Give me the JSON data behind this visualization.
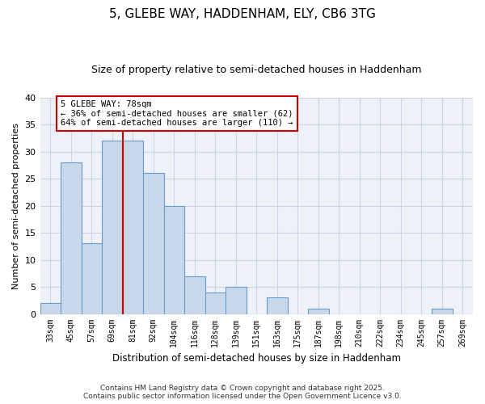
{
  "title": "5, GLEBE WAY, HADDENHAM, ELY, CB6 3TG",
  "subtitle": "Size of property relative to semi-detached houses in Haddenham",
  "xlabel": "Distribution of semi-detached houses by size in Haddenham",
  "ylabel": "Number of semi-detached properties",
  "categories": [
    "33sqm",
    "45sqm",
    "57sqm",
    "69sqm",
    "81sqm",
    "92sqm",
    "104sqm",
    "116sqm",
    "128sqm",
    "139sqm",
    "151sqm",
    "163sqm",
    "175sqm",
    "187sqm",
    "198sqm",
    "210sqm",
    "222sqm",
    "234sqm",
    "245sqm",
    "257sqm",
    "269sqm"
  ],
  "values": [
    2,
    28,
    13,
    32,
    32,
    26,
    20,
    7,
    4,
    5,
    0,
    3,
    0,
    1,
    0,
    0,
    0,
    0,
    0,
    1,
    0
  ],
  "bar_color": "#c8d8ea",
  "bar_edge_color": "#6699cc",
  "vline_x": 3.5,
  "vline_color": "#cc0000",
  "annotation_title": "5 GLEBE WAY: 78sqm",
  "annotation_line1": "← 36% of semi-detached houses are smaller (62)",
  "annotation_line2": "64% of semi-detached houses are larger (110) →",
  "annotation_box_color": "#ffffff",
  "annotation_box_edge": "#cc0000",
  "ylim": [
    0,
    40
  ],
  "yticks": [
    0,
    5,
    10,
    15,
    20,
    25,
    30,
    35,
    40
  ],
  "grid_color": "#c8d4e8",
  "bg_color": "#eef2f8",
  "fig_bg_color": "#ffffff",
  "footer_line1": "Contains HM Land Registry data © Crown copyright and database right 2025.",
  "footer_line2": "Contains public sector information licensed under the Open Government Licence v3.0."
}
